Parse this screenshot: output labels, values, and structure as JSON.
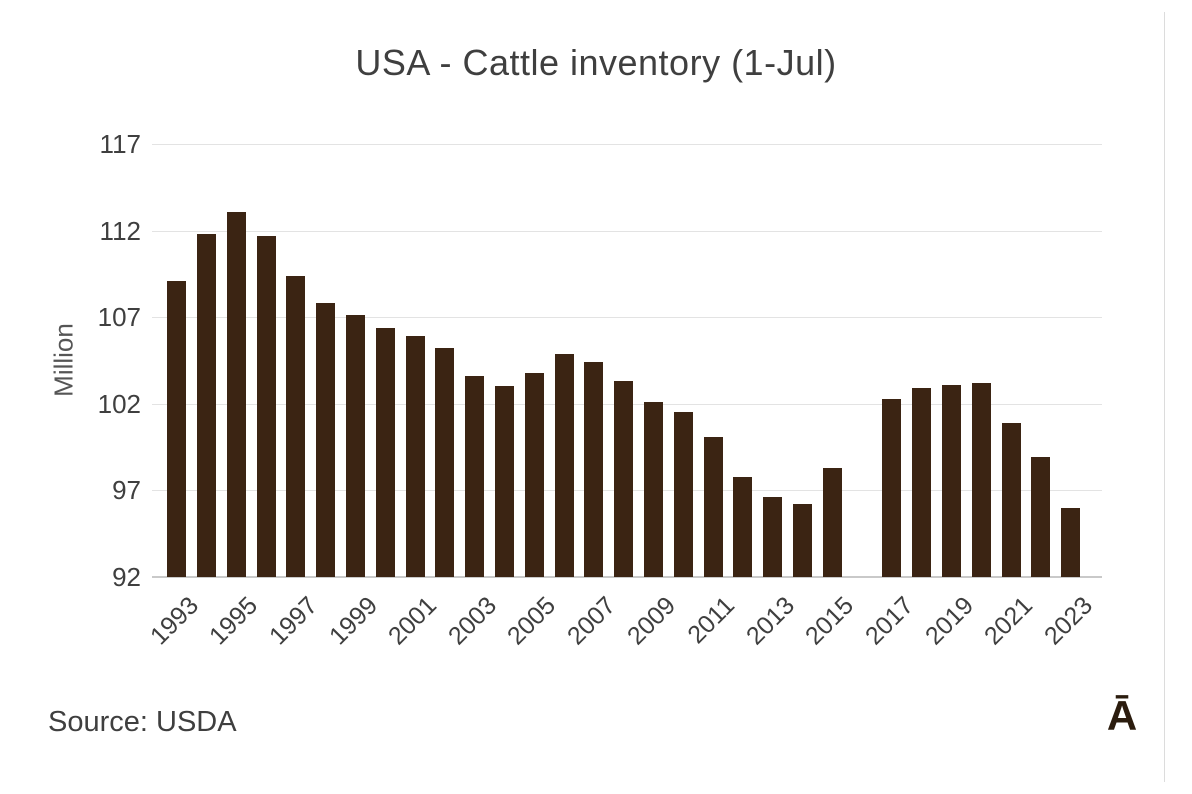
{
  "source": {
    "text": "Source: USDA"
  },
  "watermark": {
    "text": "Ā"
  },
  "colors": {
    "bar": "#3B2413",
    "gridline": "#E3E3E3",
    "axis_line": "#C9C9C9",
    "text": "#3F3F3F",
    "axis_label": "#555555",
    "background": "#FFFFFF",
    "watermark": "#2B1C0E",
    "right_edge_line": "#DCDCDC"
  },
  "chart_data": {
    "type": "bar",
    "title": "USA - Cattle inventory (1-Jul)",
    "xlabel": "",
    "ylabel": "Million",
    "unit": "Million head",
    "ylim": [
      92,
      117
    ],
    "yticks": [
      92,
      97,
      102,
      107,
      112,
      117
    ],
    "grid": true,
    "legend": false,
    "xtick_labels": [
      "1993",
      "1995",
      "1997",
      "1999",
      "2001",
      "2003",
      "2005",
      "2007",
      "2009",
      "2011",
      "2013",
      "2015",
      "2017",
      "2019",
      "2021",
      "2023"
    ],
    "xtick_rotation_deg": 45,
    "missing_years": [
      2016
    ],
    "categories": [
      1993,
      1994,
      1995,
      1996,
      1997,
      1998,
      1999,
      2000,
      2001,
      2002,
      2003,
      2004,
      2005,
      2006,
      2007,
      2008,
      2009,
      2010,
      2011,
      2012,
      2013,
      2014,
      2015,
      2016,
      2017,
      2018,
      2019,
      2020,
      2021,
      2022,
      2023
    ],
    "values": [
      109.1,
      111.8,
      113.1,
      111.7,
      109.4,
      107.8,
      107.1,
      106.4,
      105.9,
      105.2,
      103.6,
      103.0,
      103.8,
      104.9,
      104.4,
      103.3,
      102.1,
      101.5,
      100.1,
      97.8,
      96.6,
      96.2,
      98.3,
      null,
      102.3,
      102.9,
      103.1,
      103.2,
      100.9,
      98.9,
      96.0
    ]
  }
}
